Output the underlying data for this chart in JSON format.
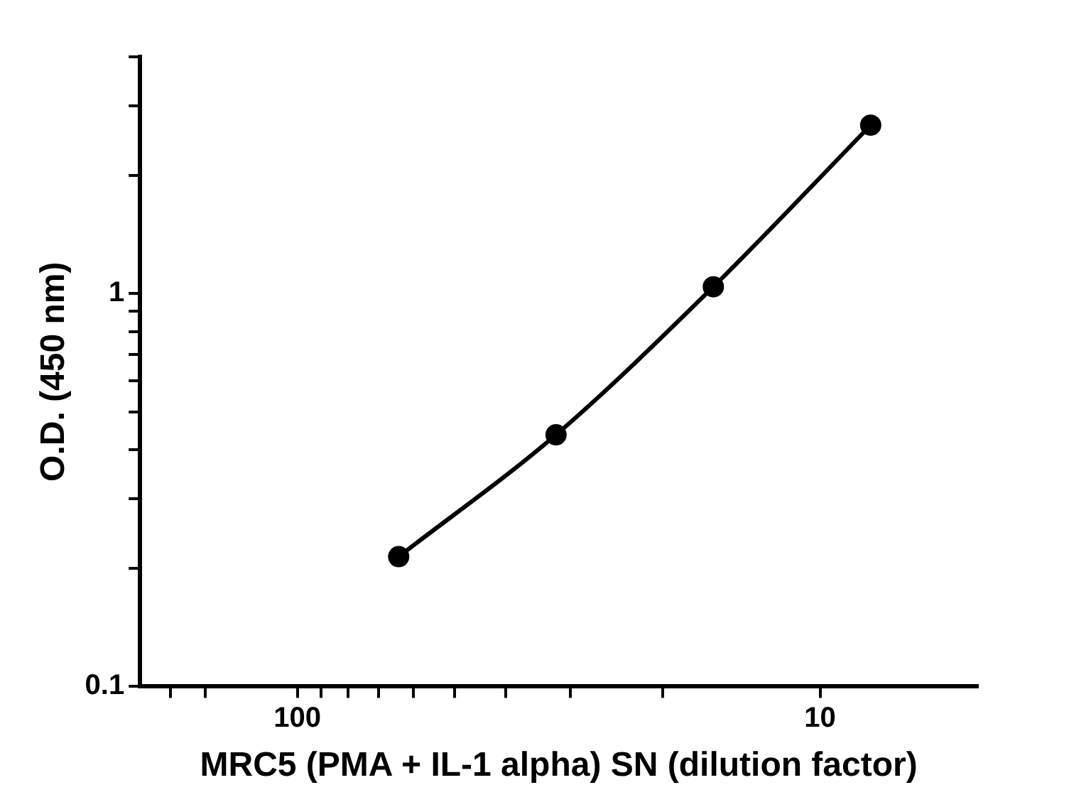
{
  "chart_data": {
    "type": "line",
    "xlabel": "MRC5 (PMA + IL-1 alpha) SN (dilution factor)",
    "ylabel": "O.D. (450 nm)",
    "x": [
      64,
      32,
      16,
      8
    ],
    "series": [
      {
        "color": "#000000",
        "values": [
          0.214,
          0.437,
          1.04,
          2.68
        ]
      }
    ],
    "log": "xy",
    "xlim": [
      200,
      5
    ],
    "ylim": [
      0.1,
      4
    ],
    "xticks": [
      {
        "value": 175,
        "label": null
      },
      {
        "value": 150,
        "label": null
      },
      100,
      {
        "value": 90,
        "label": null
      },
      {
        "value": 80,
        "label": null
      },
      {
        "value": 70,
        "label": null
      },
      {
        "value": 60,
        "label": null
      },
      {
        "value": 50,
        "label": null
      },
      {
        "value": 40,
        "label": null
      },
      {
        "value": 30,
        "label": null
      },
      {
        "value": 20,
        "label": null
      },
      10
    ],
    "yticks": [
      0.1,
      {
        "value": 0.2,
        "label": null
      },
      {
        "value": 0.3,
        "label": null
      },
      {
        "value": 0.4,
        "label": null
      },
      {
        "value": 0.5,
        "label": null
      },
      {
        "value": 0.6,
        "label": null
      },
      {
        "value": 0.7,
        "label": null
      },
      {
        "value": 0.8,
        "label": null
      },
      {
        "value": 0.9,
        "label": null
      },
      1,
      {
        "value": 2,
        "label": null
      },
      {
        "value": 3,
        "label": null
      },
      {
        "value": 4,
        "label": null
      }
    ],
    "grid": false,
    "legend": false,
    "marker": "circle",
    "line_style": "solid"
  }
}
